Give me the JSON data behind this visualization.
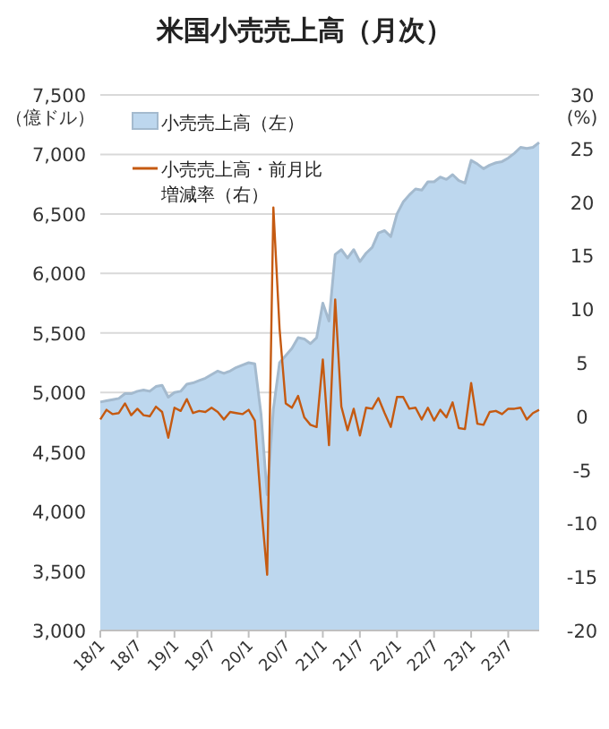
{
  "chart_data": {
    "type": "area",
    "title": "米国小売売上高（月次）",
    "ylabel": "（億ドル）",
    "y2label": "(%)",
    "categories": [
      "18/1",
      null,
      null,
      null,
      null,
      null,
      "18/7",
      null,
      null,
      null,
      null,
      null,
      "19/1",
      null,
      null,
      null,
      null,
      null,
      "19/7",
      null,
      null,
      null,
      null,
      null,
      "20/1",
      null,
      null,
      null,
      null,
      null,
      "20/7",
      null,
      null,
      null,
      null,
      null,
      "21/1",
      null,
      null,
      null,
      null,
      null,
      "21/7",
      null,
      null,
      null,
      null,
      null,
      "22/1",
      null,
      null,
      null,
      null,
      null,
      "22/7",
      null,
      null,
      null,
      null,
      null,
      "23/1",
      null,
      null,
      null,
      null,
      null,
      "23/7",
      null,
      null,
      null,
      null,
      null
    ],
    "series": [
      {
        "name": "小売売上高（左）",
        "color": "#bdd7ee",
        "values": [
          4920,
          4930,
          4940,
          4950,
          4990,
          4990,
          5010,
          5020,
          5010,
          5050,
          5060,
          4960,
          5000,
          5010,
          5070,
          5080,
          5100,
          5120,
          5150,
          5180,
          5160,
          5180,
          5210,
          5230,
          5250,
          5240,
          4820,
          4140,
          4860,
          5250,
          5310,
          5370,
          5460,
          5450,
          5410,
          5460,
          5750,
          5600,
          6160,
          6200,
          6130,
          6200,
          6100,
          6170,
          6220,
          6340,
          6360,
          6310,
          6500,
          6600,
          6660,
          6710,
          6700,
          6770,
          6770,
          6810,
          6790,
          6830,
          6780,
          6760,
          6950,
          6920,
          6880,
          6910,
          6930,
          6940,
          6970,
          7010,
          7060,
          7050,
          7060,
          7100
        ]
      },
      {
        "name": "小売売上高・前月比増減率（右）",
        "type": "line",
        "axis": "y2",
        "color": "#c55a11",
        "values": [
          -0.3,
          0.6,
          0.2,
          0.3,
          1.2,
          0.1,
          0.7,
          0.1,
          0.0,
          0.9,
          0.4,
          -2.0,
          0.8,
          0.5,
          1.6,
          0.3,
          0.5,
          0.4,
          0.8,
          0.4,
          -0.3,
          0.4,
          0.3,
          0.2,
          0.6,
          -0.4,
          -8.2,
          -14.8,
          19.5,
          8.2,
          1.2,
          0.8,
          1.9,
          -0.1,
          -0.8,
          -1.0,
          5.3,
          -2.7,
          10.9,
          0.9,
          -1.3,
          0.7,
          -1.8,
          0.8,
          0.7,
          1.7,
          0.3,
          -1.0,
          1.8,
          1.8,
          0.7,
          0.8,
          -0.3,
          0.8,
          -0.4,
          0.6,
          -0.1,
          1.3,
          -1.1,
          -1.2,
          3.1,
          -0.7,
          -0.8,
          0.4,
          0.5,
          0.2,
          0.7,
          0.7,
          0.8,
          -0.3,
          0.3,
          0.6
        ]
      }
    ],
    "ylim": [
      3000,
      7500
    ],
    "yticks": [
      {
        "value": 3000,
        "label": "3,000"
      },
      {
        "value": 3500,
        "label": "3,500"
      },
      {
        "value": 4000,
        "label": "4,000"
      },
      {
        "value": 4500,
        "label": "4,500"
      },
      {
        "value": 5000,
        "label": "5,000"
      },
      {
        "value": 5500,
        "label": "5,500"
      },
      {
        "value": 6000,
        "label": "6,000"
      },
      {
        "value": 6500,
        "label": "6,500"
      },
      {
        "value": 7000,
        "label": "7,000"
      },
      {
        "value": 7500,
        "label": "7,500"
      }
    ],
    "y2lim": [
      -20,
      30
    ],
    "y2ticks": [
      -20,
      -15,
      -10,
      -5,
      0,
      5,
      10,
      15,
      20,
      25,
      30
    ],
    "grid": "y",
    "legend": "top left",
    "marker": "none",
    "line_style": "solid"
  }
}
